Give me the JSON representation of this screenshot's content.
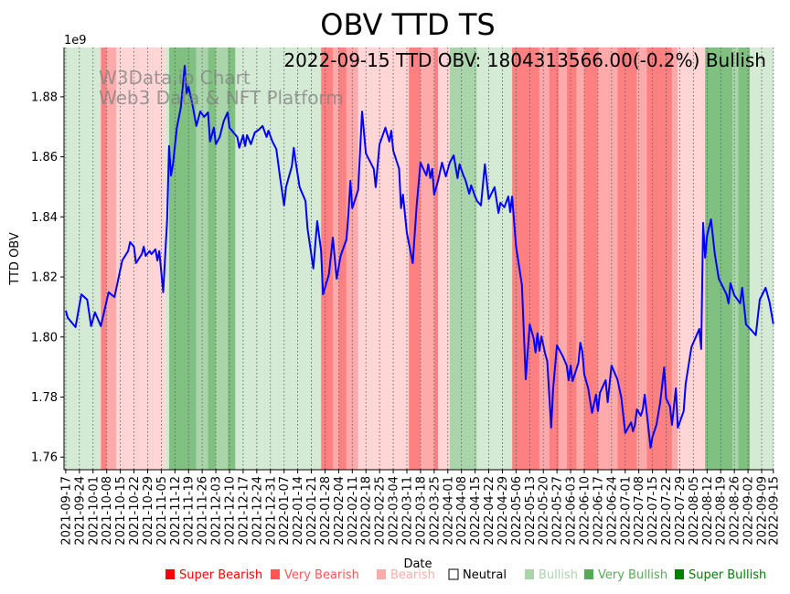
{
  "chart_data": {
    "type": "line",
    "title": "OBV TTD TS",
    "annotation": "2022-09-15 TTD OBV: 1804313566.00(-0.2%) Bullish",
    "watermark": [
      "W3Data.io Chart",
      "Web3 Data & NFT Platform"
    ],
    "xlabel": "Date",
    "ylabel": "TTD OBV",
    "y_offset_label": "1e9",
    "x_start_date": "2021-09-17",
    "x_unit": "days since x_start_date",
    "xlim": [
      -0.9,
      363.1
    ],
    "ylim": [
      1.7558,
      1.8964
    ],
    "yticks": [
      1.76,
      1.78,
      1.8,
      1.82,
      1.84,
      1.86,
      1.88
    ],
    "ytick_labels": [
      "1.76",
      "1.78",
      "1.80",
      "1.82",
      "1.84",
      "1.86",
      "1.88"
    ],
    "xticks": [
      0,
      7,
      14,
      21,
      28,
      35,
      42,
      49,
      56,
      63,
      70,
      77,
      84,
      91,
      98,
      105,
      112,
      119,
      126,
      133,
      140,
      147,
      154,
      161,
      168,
      175,
      182,
      189,
      196,
      203,
      210,
      217,
      224,
      231,
      238,
      245,
      252,
      259,
      266,
      273,
      280,
      287,
      294,
      301,
      308,
      315,
      322,
      329,
      336,
      343,
      350,
      357,
      363
    ],
    "xtick_labels": [
      "2021-09-17",
      "2021-09-24",
      "2021-10-01",
      "2021-10-08",
      "2021-10-15",
      "2021-10-22",
      "2021-10-29",
      "2021-11-05",
      "2021-11-12",
      "2021-11-19",
      "2021-11-26",
      "2021-12-03",
      "2021-12-10",
      "2021-12-17",
      "2021-12-24",
      "2021-12-31",
      "2022-01-07",
      "2022-01-14",
      "2022-01-21",
      "2022-01-28",
      "2022-02-04",
      "2022-02-11",
      "2022-02-18",
      "2022-02-25",
      "2022-03-04",
      "2022-03-11",
      "2022-03-18",
      "2022-03-25",
      "2022-04-01",
      "2022-04-08",
      "2022-04-15",
      "2022-04-22",
      "2022-04-29",
      "2022-05-06",
      "2022-05-13",
      "2022-05-20",
      "2022-05-27",
      "2022-06-03",
      "2022-06-10",
      "2022-06-17",
      "2022-06-24",
      "2022-07-01",
      "2022-07-08",
      "2022-07-15",
      "2022-07-22",
      "2022-07-29",
      "2022-08-05",
      "2022-08-12",
      "2022-08-19",
      "2022-08-26",
      "2022-09-02",
      "2022-09-09",
      "2022-09-15"
    ],
    "grid": "vertical dotted",
    "line_color": "#0000ff",
    "series": [
      {
        "name": "TTD OBV (1e9)",
        "points": [
          [
            0,
            1.8088
          ],
          [
            1,
            1.8064
          ],
          [
            5,
            1.8033
          ],
          [
            8,
            1.8142
          ],
          [
            11,
            1.8124
          ],
          [
            13,
            1.8036
          ],
          [
            15,
            1.8082
          ],
          [
            18,
            1.8036
          ],
          [
            22,
            1.8149
          ],
          [
            25,
            1.8133
          ],
          [
            29,
            1.8255
          ],
          [
            32,
            1.8286
          ],
          [
            33,
            1.8316
          ],
          [
            35,
            1.8301
          ],
          [
            36,
            1.8246
          ],
          [
            39,
            1.8276
          ],
          [
            40,
            1.8301
          ],
          [
            41,
            1.827
          ],
          [
            43,
            1.8286
          ],
          [
            44,
            1.8276
          ],
          [
            46,
            1.8292
          ],
          [
            47,
            1.8255
          ],
          [
            48,
            1.8286
          ],
          [
            50,
            1.8149
          ],
          [
            52,
            1.8392
          ],
          [
            53,
            1.8636
          ],
          [
            54,
            1.8538
          ],
          [
            55,
            1.8575
          ],
          [
            57,
            1.8697
          ],
          [
            59,
            1.8763
          ],
          [
            61,
            1.8903
          ],
          [
            62,
            1.8812
          ],
          [
            63,
            1.8833
          ],
          [
            65,
            1.8773
          ],
          [
            67,
            1.8703
          ],
          [
            69,
            1.8751
          ],
          [
            71,
            1.8733
          ],
          [
            73,
            1.8748
          ],
          [
            74,
            1.8651
          ],
          [
            76,
            1.8697
          ],
          [
            77,
            1.8642
          ],
          [
            79,
            1.8666
          ],
          [
            81,
            1.8718
          ],
          [
            83,
            1.8748
          ],
          [
            84,
            1.8697
          ],
          [
            86,
            1.8681
          ],
          [
            88,
            1.8666
          ],
          [
            89,
            1.863
          ],
          [
            91,
            1.8672
          ],
          [
            92,
            1.8636
          ],
          [
            93,
            1.8672
          ],
          [
            95,
            1.8642
          ],
          [
            97,
            1.8681
          ],
          [
            99,
            1.869
          ],
          [
            101,
            1.8703
          ],
          [
            103,
            1.8666
          ],
          [
            104,
            1.8687
          ],
          [
            106,
            1.8651
          ],
          [
            108,
            1.8626
          ],
          [
            110,
            1.8529
          ],
          [
            112,
            1.8438
          ],
          [
            113,
            1.8499
          ],
          [
            116,
            1.8569
          ],
          [
            117,
            1.863
          ],
          [
            118,
            1.8581
          ],
          [
            120,
            1.8499
          ],
          [
            123,
            1.8453
          ],
          [
            124,
            1.8362
          ],
          [
            127,
            1.8228
          ],
          [
            129,
            1.8386
          ],
          [
            131,
            1.8286
          ],
          [
            132,
            1.8142
          ],
          [
            135,
            1.8209
          ],
          [
            136,
            1.827
          ],
          [
            137,
            1.8331
          ],
          [
            139,
            1.8194
          ],
          [
            141,
            1.827
          ],
          [
            144,
            1.8325
          ],
          [
            145,
            1.8407
          ],
          [
            146,
            1.852
          ],
          [
            147,
            1.8429
          ],
          [
            150,
            1.849
          ],
          [
            152,
            1.8751
          ],
          [
            154,
            1.8611
          ],
          [
            158,
            1.856
          ],
          [
            159,
            1.8499
          ],
          [
            161,
            1.8642
          ],
          [
            164,
            1.8697
          ],
          [
            166,
            1.8651
          ],
          [
            167,
            1.8687
          ],
          [
            168,
            1.862
          ],
          [
            171,
            1.856
          ],
          [
            172,
            1.8429
          ],
          [
            173,
            1.8474
          ],
          [
            175,
            1.8346
          ],
          [
            178,
            1.8246
          ],
          [
            180,
            1.8438
          ],
          [
            182,
            1.8581
          ],
          [
            185,
            1.8538
          ],
          [
            186,
            1.8575
          ],
          [
            187,
            1.8529
          ],
          [
            188,
            1.856
          ],
          [
            189,
            1.8474
          ],
          [
            191,
            1.852
          ],
          [
            193,
            1.8581
          ],
          [
            195,
            1.8535
          ],
          [
            197,
            1.8581
          ],
          [
            199,
            1.8605
          ],
          [
            201,
            1.8529
          ],
          [
            202,
            1.8575
          ],
          [
            204,
            1.8538
          ],
          [
            205,
            1.8523
          ],
          [
            207,
            1.8477
          ],
          [
            208,
            1.8505
          ],
          [
            210,
            1.8468
          ],
          [
            211,
            1.8453
          ],
          [
            213,
            1.8438
          ],
          [
            215,
            1.8575
          ],
          [
            217,
            1.8459
          ],
          [
            220,
            1.8499
          ],
          [
            222,
            1.8413
          ],
          [
            223,
            1.8447
          ],
          [
            225,
            1.8432
          ],
          [
            227,
            1.8468
          ],
          [
            228,
            1.8416
          ],
          [
            229,
            1.8468
          ],
          [
            231,
            1.8301
          ],
          [
            234,
            1.8173
          ],
          [
            236,
            1.7859
          ],
          [
            238,
            1.8042
          ],
          [
            240,
            1.7996
          ],
          [
            241,
            1.7948
          ],
          [
            242,
            1.8012
          ],
          [
            243,
            1.7954
          ],
          [
            244,
            1.8002
          ],
          [
            246,
            1.7942
          ],
          [
            247,
            1.792
          ],
          [
            249,
            1.7698
          ],
          [
            250,
            1.7826
          ],
          [
            252,
            1.7972
          ],
          [
            255,
            1.7936
          ],
          [
            257,
            1.7905
          ],
          [
            258,
            1.7856
          ],
          [
            259,
            1.7905
          ],
          [
            260,
            1.7853
          ],
          [
            263,
            1.7914
          ],
          [
            264,
            1.7981
          ],
          [
            265,
            1.7951
          ],
          [
            266,
            1.7875
          ],
          [
            268,
            1.7829
          ],
          [
            270,
            1.7747
          ],
          [
            272,
            1.7808
          ],
          [
            273,
            1.7753
          ],
          [
            274,
            1.7814
          ],
          [
            277,
            1.7856
          ],
          [
            278,
            1.7783
          ],
          [
            280,
            1.7905
          ],
          [
            283,
            1.7859
          ],
          [
            285,
            1.7798
          ],
          [
            287,
            1.768
          ],
          [
            290,
            1.7716
          ],
          [
            291,
            1.7686
          ],
          [
            292,
            1.7707
          ],
          [
            293,
            1.7759
          ],
          [
            295,
            1.7738
          ],
          [
            296,
            1.7759
          ],
          [
            297,
            1.7808
          ],
          [
            299,
            1.7692
          ],
          [
            300,
            1.7631
          ],
          [
            301,
            1.7668
          ],
          [
            303,
            1.7707
          ],
          [
            305,
            1.7783
          ],
          [
            307,
            1.7899
          ],
          [
            308,
            1.7795
          ],
          [
            310,
            1.7768
          ],
          [
            311,
            1.7707
          ],
          [
            313,
            1.7829
          ],
          [
            314,
            1.7698
          ],
          [
            317,
            1.7753
          ],
          [
            318,
            1.7844
          ],
          [
            321,
            1.7966
          ],
          [
            325,
            1.8027
          ],
          [
            326,
            1.796
          ],
          [
            327,
            1.838
          ],
          [
            328,
            1.8264
          ],
          [
            329,
            1.8337
          ],
          [
            331,
            1.8392
          ],
          [
            333,
            1.8276
          ],
          [
            335,
            1.8194
          ],
          [
            339,
            1.8142
          ],
          [
            340,
            1.8112
          ],
          [
            341,
            1.8179
          ],
          [
            343,
            1.8139
          ],
          [
            346,
            1.8112
          ],
          [
            347,
            1.8164
          ],
          [
            349,
            1.8042
          ],
          [
            352,
            1.8021
          ],
          [
            354,
            1.8006
          ],
          [
            356,
            1.8124
          ],
          [
            359,
            1.8164
          ],
          [
            361,
            1.8118
          ],
          [
            363,
            1.8043
          ]
        ]
      }
    ],
    "regime_bands": [
      [
        -1,
        18,
        1
      ],
      [
        18,
        21,
        -3
      ],
      [
        21,
        26,
        -2
      ],
      [
        26,
        51,
        -1
      ],
      [
        51,
        53,
        1
      ],
      [
        53,
        67,
        3
      ],
      [
        67,
        73,
        2
      ],
      [
        73,
        77,
        3
      ],
      [
        77,
        83,
        2
      ],
      [
        83,
        87,
        3
      ],
      [
        87,
        131,
        1
      ],
      [
        131,
        137,
        -3
      ],
      [
        137,
        140,
        -2
      ],
      [
        140,
        144,
        -3
      ],
      [
        144,
        150,
        -2
      ],
      [
        150,
        176,
        -1
      ],
      [
        176,
        182,
        -3
      ],
      [
        182,
        189,
        -2
      ],
      [
        189,
        191,
        -3
      ],
      [
        191,
        197,
        -1
      ],
      [
        197,
        211,
        2
      ],
      [
        211,
        229,
        1
      ],
      [
        229,
        243,
        -3
      ],
      [
        243,
        248,
        -2
      ],
      [
        248,
        253,
        -3
      ],
      [
        253,
        257,
        -2
      ],
      [
        257,
        262,
        -3
      ],
      [
        262,
        266,
        -2
      ],
      [
        266,
        273,
        -3
      ],
      [
        273,
        283,
        -2
      ],
      [
        283,
        293,
        -3
      ],
      [
        293,
        298,
        -2
      ],
      [
        298,
        311,
        -3
      ],
      [
        311,
        314,
        -2
      ],
      [
        314,
        328,
        -1
      ],
      [
        328,
        342,
        3
      ],
      [
        342,
        345,
        2
      ],
      [
        345,
        351,
        3
      ],
      [
        351,
        364,
        1
      ]
    ],
    "band_colors": {
      "-3": "#ff8080",
      "-2": "#ffaaaa",
      "-1": "#ffd5d5",
      "1": "#d5ead5",
      "2": "#aad5aa",
      "3": "#80c080"
    },
    "legend": {
      "placement": "bottom",
      "entries": [
        {
          "label": "Super Bearish",
          "color": "#ff0000",
          "text_color": "#ff0000"
        },
        {
          "label": "Very Bearish",
          "color": "#ff5555",
          "text_color": "#ff5555"
        },
        {
          "label": "Bearish",
          "color": "#ffaaaa",
          "text_color": "#ffaaaa"
        },
        {
          "label": "Neutral",
          "color": "#ffffff",
          "text_color": "#000000"
        },
        {
          "label": "Bullish",
          "color": "#aad4aa",
          "text_color": "#aad4aa"
        },
        {
          "label": "Very Bullish",
          "color": "#55aa55",
          "text_color": "#55aa55"
        },
        {
          "label": "Super Bullish",
          "color": "#008000",
          "text_color": "#008000"
        }
      ]
    }
  }
}
